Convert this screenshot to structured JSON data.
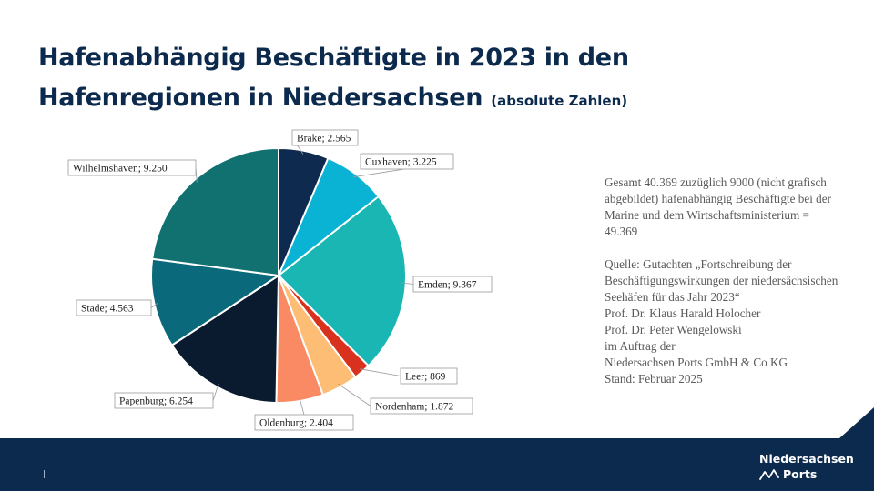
{
  "title": {
    "line1": "Hafenabhängig Beschäftigte in 2023  in den",
    "line2": "Hafenregionen in Niedersachsen",
    "subtitle": "(absolute Zahlen)"
  },
  "colors": {
    "navy": "#0c2a4d",
    "Brake": "#0e2a4e",
    "Cuxhaven": "#0ab2d3",
    "Emden": "#19b6b3",
    "Leer": "#d8321f",
    "Nordenham": "#fdbd75",
    "Oldenburg": "#fa8a63",
    "Papenburg": "#0a1b2f",
    "Stade": "#0a697a",
    "Wilhelmshaven": "#117170"
  },
  "chart_data": {
    "type": "pie",
    "title": "Hafenabhängig Beschäftigte in 2023  in den Hafenregionen in Niedersachsen",
    "start": "12 o'clock, clockwise",
    "categories": [
      "Brake",
      "Cuxhaven",
      "Emden",
      "Leer",
      "Nordenham",
      "Oldenburg",
      "Papenburg",
      "Stade",
      "Wilhelmshaven"
    ],
    "values": [
      2565,
      3225,
      9367,
      869,
      1872,
      2404,
      6254,
      4563,
      9250
    ],
    "data_labels": [
      "Brake; 2.565",
      "Cuxhaven; 3.225",
      "Emden; 9.367",
      "Leer; 869",
      "Nordenham; 1.872",
      "Oldenburg; 2.404",
      "Papenburg; 6.254",
      "Stade; 4.563",
      "Wilhelmshaven; 9.250"
    ]
  },
  "note": {
    "p1": "Gesamt 40.369 zuzüglich 9000 (nicht grafisch abgebildet) hafenabhängig Beschäftigte bei der Marine und dem Wirtschaftsministerium = 49.369",
    "p2": "Quelle: Gutachten „Fortschreibung der Beschäftigungswirkungen der niedersächsischen Seehäfen für das Jahr 2023“",
    "lines": [
      "Prof. Dr. Klaus Harald Holocher",
      "Prof. Dr. Peter Wengelowski",
      "im Auftrag der",
      "Niedersachsen Ports GmbH & Co KG",
      "Stand: Februar 2025"
    ]
  },
  "logo": {
    "line1": "Niedersachsen",
    "line2": "Ports"
  }
}
